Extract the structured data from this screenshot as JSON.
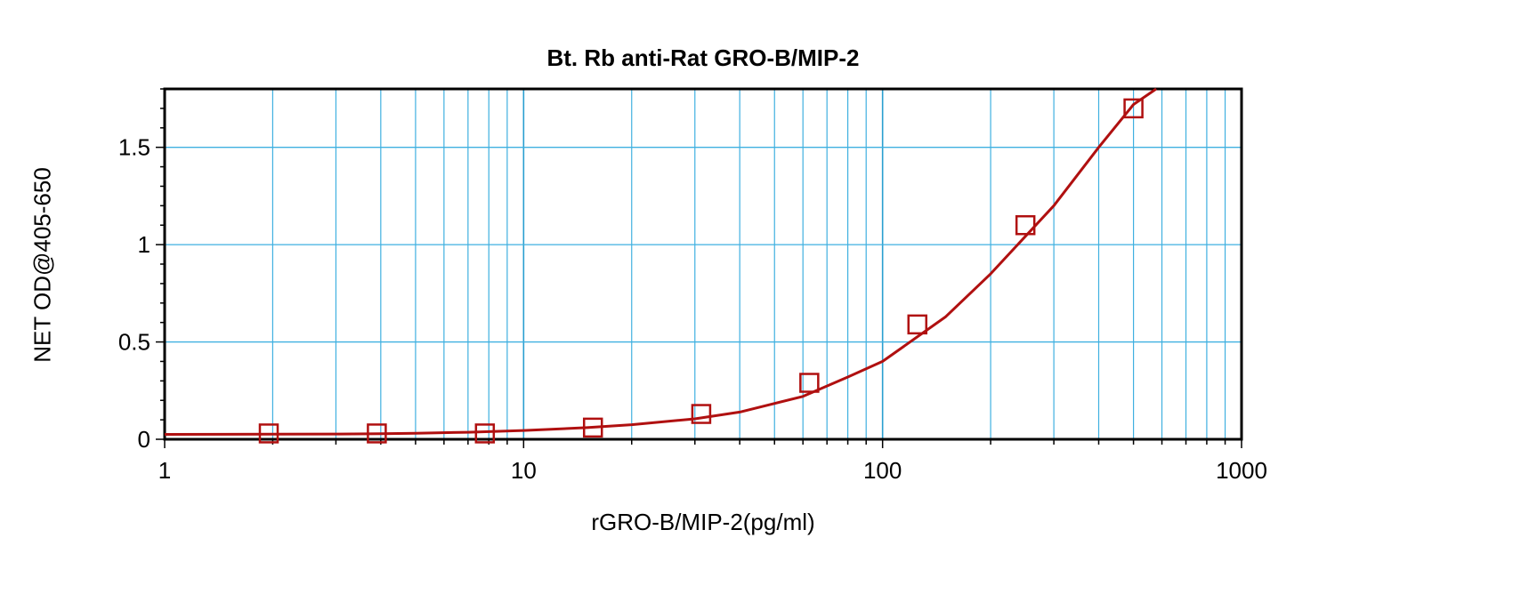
{
  "chart_data": {
    "type": "scatter",
    "title": "Bt. Rb anti-Rat GRO-B/MIP-2",
    "xlabel": "rGRO-B/MIP-2(pg/ml)",
    "ylabel": "NET OD@405-650",
    "xscale": "log",
    "xlim": [
      1,
      1000
    ],
    "ylim": [
      0,
      1.8
    ],
    "grid": true,
    "x_ticks": [
      1,
      10,
      100,
      1000
    ],
    "x_tick_labels": [
      "1",
      "10",
      "100",
      "1000"
    ],
    "y_ticks": [
      0,
      0.5,
      1,
      1.5
    ],
    "y_tick_labels": [
      "0",
      "0.5",
      "1",
      "1.5"
    ],
    "series": [
      {
        "marker": "square",
        "color": "#b01010",
        "x": [
          1.95,
          3.9,
          7.8,
          15.6,
          31.25,
          62.5,
          125,
          250,
          500
        ],
        "y": [
          0.03,
          0.03,
          0.03,
          0.06,
          0.13,
          0.29,
          0.59,
          1.1,
          1.7
        ]
      }
    ],
    "fit_curve": {
      "color": "#b01010",
      "x": [
        1,
        2,
        3,
        4,
        5,
        7,
        10,
        15,
        20,
        30,
        40,
        60,
        80,
        100,
        150,
        200,
        300,
        400,
        500,
        600
      ],
      "y": [
        0.025,
        0.026,
        0.027,
        0.029,
        0.031,
        0.036,
        0.045,
        0.06,
        0.075,
        0.105,
        0.14,
        0.22,
        0.32,
        0.4,
        0.63,
        0.85,
        1.2,
        1.5,
        1.72,
        1.82
      ]
    }
  }
}
